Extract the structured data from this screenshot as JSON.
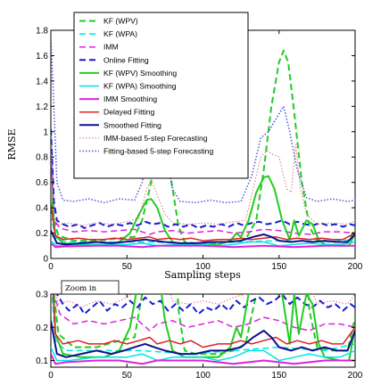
{
  "chart_data": [
    {
      "type": "line",
      "panel": "main",
      "xlabel": "Sampling steps",
      "ylabel": "RMSE",
      "xlim": [
        0,
        200
      ],
      "ylim": [
        0,
        1.8
      ],
      "xticks": [
        0,
        50,
        100,
        150,
        200
      ],
      "yticks": [
        0,
        0.2,
        0.4,
        0.6,
        0.8,
        1,
        1.2,
        1.4,
        1.6,
        1.8
      ],
      "grid": false,
      "legend_position": "top-right"
    },
    {
      "type": "line",
      "panel": "zoom",
      "annotation": "Zoom in",
      "xlim": [
        0,
        200
      ],
      "ylim": [
        0.08,
        0.3
      ],
      "xticks": [
        0,
        50,
        100,
        150,
        200
      ],
      "yticks": [
        0.1,
        0.2,
        0.3
      ],
      "grid": false
    }
  ],
  "series": [
    {
      "name": "KF (WPV)",
      "color": "#22cc22",
      "style": "dashed",
      "width": 2,
      "points": [
        [
          0,
          1.0
        ],
        [
          2,
          0.3
        ],
        [
          5,
          0.18
        ],
        [
          15,
          0.14
        ],
        [
          30,
          0.14
        ],
        [
          45,
          0.16
        ],
        [
          55,
          0.17
        ],
        [
          60,
          0.3
        ],
        [
          65,
          0.55
        ],
        [
          70,
          0.85
        ],
        [
          73,
          0.93
        ],
        [
          76,
          0.85
        ],
        [
          80,
          0.55
        ],
        [
          84,
          0.25
        ],
        [
          88,
          0.13
        ],
        [
          95,
          0.12
        ],
        [
          110,
          0.12
        ],
        [
          120,
          0.13
        ],
        [
          128,
          0.15
        ],
        [
          135,
          0.3
        ],
        [
          140,
          0.7
        ],
        [
          145,
          1.2
        ],
        [
          150,
          1.55
        ],
        [
          153,
          1.64
        ],
        [
          156,
          1.55
        ],
        [
          160,
          1.15
        ],
        [
          165,
          0.6
        ],
        [
          170,
          0.25
        ],
        [
          175,
          0.14
        ],
        [
          185,
          0.13
        ],
        [
          195,
          0.13
        ],
        [
          200,
          0.23
        ]
      ]
    },
    {
      "name": "KF (WPA)",
      "color": "#00e5e5",
      "style": "dashed",
      "width": 1.5,
      "points": [
        [
          0,
          0.35
        ],
        [
          3,
          0.16
        ],
        [
          10,
          0.13
        ],
        [
          30,
          0.13
        ],
        [
          60,
          0.13
        ],
        [
          90,
          0.12
        ],
        [
          120,
          0.13
        ],
        [
          150,
          0.14
        ],
        [
          180,
          0.13
        ],
        [
          200,
          0.15
        ]
      ]
    },
    {
      "name": "IMM",
      "color": "#dd22dd",
      "style": "dashed",
      "width": 1.5,
      "points": [
        [
          0,
          0.9
        ],
        [
          2,
          0.3
        ],
        [
          6,
          0.24
        ],
        [
          15,
          0.21
        ],
        [
          25,
          0.22
        ],
        [
          35,
          0.21
        ],
        [
          45,
          0.22
        ],
        [
          55,
          0.23
        ],
        [
          65,
          0.19
        ],
        [
          70,
          0.21
        ],
        [
          80,
          0.22
        ],
        [
          90,
          0.2
        ],
        [
          100,
          0.21
        ],
        [
          110,
          0.22
        ],
        [
          120,
          0.2
        ],
        [
          130,
          0.21
        ],
        [
          140,
          0.23
        ],
        [
          150,
          0.22
        ],
        [
          160,
          0.2
        ],
        [
          170,
          0.19
        ],
        [
          180,
          0.21
        ],
        [
          190,
          0.21
        ],
        [
          200,
          0.2
        ]
      ]
    },
    {
      "name": "Online Fitting",
      "color": "#1a1ad0",
      "style": "dashed",
      "width": 2,
      "points": [
        [
          0,
          1.02
        ],
        [
          2,
          0.45
        ],
        [
          4,
          0.3
        ],
        [
          8,
          0.27
        ],
        [
          12,
          0.25
        ],
        [
          18,
          0.27
        ],
        [
          22,
          0.24
        ],
        [
          27,
          0.26
        ],
        [
          32,
          0.28
        ],
        [
          37,
          0.25
        ],
        [
          42,
          0.27
        ],
        [
          47,
          0.26
        ],
        [
          52,
          0.28
        ],
        [
          57,
          0.26
        ],
        [
          62,
          0.29
        ],
        [
          67,
          0.27
        ],
        [
          72,
          0.28
        ],
        [
          77,
          0.25
        ],
        [
          82,
          0.27
        ],
        [
          87,
          0.25
        ],
        [
          92,
          0.27
        ],
        [
          97,
          0.24
        ],
        [
          102,
          0.26
        ],
        [
          107,
          0.25
        ],
        [
          112,
          0.27
        ],
        [
          117,
          0.25
        ],
        [
          122,
          0.28
        ],
        [
          127,
          0.26
        ],
        [
          132,
          0.28
        ],
        [
          137,
          0.29
        ],
        [
          142,
          0.27
        ],
        [
          147,
          0.28
        ],
        [
          152,
          0.3
        ],
        [
          157,
          0.27
        ],
        [
          162,
          0.29
        ],
        [
          167,
          0.27
        ],
        [
          172,
          0.26
        ],
        [
          177,
          0.28
        ],
        [
          182,
          0.26
        ],
        [
          187,
          0.27
        ],
        [
          192,
          0.25
        ],
        [
          197,
          0.27
        ],
        [
          200,
          0.26
        ]
      ]
    },
    {
      "name": "KF (WPV) Smoothing",
      "color": "#22cc22",
      "style": "solid",
      "width": 2,
      "points": [
        [
          0,
          0.5
        ],
        [
          3,
          0.18
        ],
        [
          8,
          0.12
        ],
        [
          20,
          0.11
        ],
        [
          35,
          0.11
        ],
        [
          45,
          0.13
        ],
        [
          52,
          0.2
        ],
        [
          58,
          0.35
        ],
        [
          63,
          0.46
        ],
        [
          66,
          0.47
        ],
        [
          70,
          0.4
        ],
        [
          75,
          0.22
        ],
        [
          80,
          0.13
        ],
        [
          88,
          0.11
        ],
        [
          100,
          0.11
        ],
        [
          110,
          0.11
        ],
        [
          118,
          0.14
        ],
        [
          122,
          0.2
        ],
        [
          125,
          0.17
        ],
        [
          130,
          0.3
        ],
        [
          135,
          0.52
        ],
        [
          140,
          0.64
        ],
        [
          143,
          0.65
        ],
        [
          147,
          0.55
        ],
        [
          152,
          0.3
        ],
        [
          157,
          0.15
        ],
        [
          160,
          0.3
        ],
        [
          163,
          0.18
        ],
        [
          168,
          0.3
        ],
        [
          172,
          0.27
        ],
        [
          176,
          0.15
        ],
        [
          180,
          0.11
        ],
        [
          190,
          0.1
        ],
        [
          196,
          0.1
        ],
        [
          200,
          0.2
        ]
      ]
    },
    {
      "name": "KF (WPA) Smoothing",
      "color": "#00e5e5",
      "style": "solid",
      "width": 1.5,
      "points": [
        [
          0,
          0.14
        ],
        [
          4,
          0.1
        ],
        [
          12,
          0.1
        ],
        [
          30,
          0.11
        ],
        [
          50,
          0.11
        ],
        [
          60,
          0.12
        ],
        [
          70,
          0.1
        ],
        [
          80,
          0.11
        ],
        [
          100,
          0.11
        ],
        [
          110,
          0.1
        ],
        [
          120,
          0.11
        ],
        [
          130,
          0.13
        ],
        [
          140,
          0.13
        ],
        [
          150,
          0.1
        ],
        [
          160,
          0.11
        ],
        [
          170,
          0.12
        ],
        [
          180,
          0.11
        ],
        [
          190,
          0.11
        ],
        [
          200,
          0.13
        ]
      ]
    },
    {
      "name": "IMM Smoothing",
      "color": "#dd22dd",
      "style": "solid",
      "width": 2,
      "points": [
        [
          0,
          0.12
        ],
        [
          3,
          0.09
        ],
        [
          10,
          0.095
        ],
        [
          30,
          0.1
        ],
        [
          45,
          0.1
        ],
        [
          60,
          0.09
        ],
        [
          70,
          0.1
        ],
        [
          80,
          0.1
        ],
        [
          100,
          0.1
        ],
        [
          120,
          0.09
        ],
        [
          140,
          0.1
        ],
        [
          160,
          0.09
        ],
        [
          180,
          0.1
        ],
        [
          200,
          0.1
        ]
      ]
    },
    {
      "name": "Delayed Fitting",
      "color": "#dd2222",
      "style": "solid",
      "width": 1.5,
      "points": [
        [
          0,
          0.42
        ],
        [
          3,
          0.18
        ],
        [
          8,
          0.15
        ],
        [
          18,
          0.16
        ],
        [
          25,
          0.15
        ],
        [
          35,
          0.15
        ],
        [
          42,
          0.16
        ],
        [
          50,
          0.15
        ],
        [
          58,
          0.16
        ],
        [
          65,
          0.17
        ],
        [
          70,
          0.15
        ],
        [
          78,
          0.16
        ],
        [
          85,
          0.15
        ],
        [
          92,
          0.16
        ],
        [
          100,
          0.14
        ],
        [
          110,
          0.15
        ],
        [
          118,
          0.15
        ],
        [
          125,
          0.16
        ],
        [
          132,
          0.15
        ],
        [
          140,
          0.16
        ],
        [
          148,
          0.17
        ],
        [
          155,
          0.15
        ],
        [
          162,
          0.16
        ],
        [
          170,
          0.15
        ],
        [
          178,
          0.16
        ],
        [
          185,
          0.15
        ],
        [
          192,
          0.15
        ],
        [
          200,
          0.2
        ]
      ]
    },
    {
      "name": "Smoothed Fitting",
      "color": "#10108c",
      "style": "solid",
      "width": 2,
      "points": [
        [
          0,
          0.22
        ],
        [
          4,
          0.12
        ],
        [
          10,
          0.11
        ],
        [
          20,
          0.12
        ],
        [
          30,
          0.13
        ],
        [
          40,
          0.12
        ],
        [
          48,
          0.13
        ],
        [
          55,
          0.14
        ],
        [
          62,
          0.15
        ],
        [
          68,
          0.14
        ],
        [
          75,
          0.13
        ],
        [
          85,
          0.12
        ],
        [
          95,
          0.12
        ],
        [
          105,
          0.13
        ],
        [
          115,
          0.13
        ],
        [
          125,
          0.14
        ],
        [
          133,
          0.17
        ],
        [
          140,
          0.19
        ],
        [
          145,
          0.17
        ],
        [
          150,
          0.14
        ],
        [
          158,
          0.13
        ],
        [
          165,
          0.14
        ],
        [
          172,
          0.13
        ],
        [
          180,
          0.14
        ],
        [
          188,
          0.13
        ],
        [
          195,
          0.13
        ],
        [
          200,
          0.19
        ]
      ]
    },
    {
      "name": "IMM-based 5-step Forecasting",
      "color": "#d97777",
      "style": "dotted",
      "width": 1,
      "points": [
        [
          0,
          0.9
        ],
        [
          2,
          0.32
        ],
        [
          5,
          0.27
        ],
        [
          12,
          0.28
        ],
        [
          20,
          0.26
        ],
        [
          30,
          0.28
        ],
        [
          40,
          0.27
        ],
        [
          50,
          0.29
        ],
        [
          58,
          0.32
        ],
        [
          63,
          0.55
        ],
        [
          66,
          0.62
        ],
        [
          70,
          0.5
        ],
        [
          75,
          0.35
        ],
        [
          80,
          0.28
        ],
        [
          90,
          0.27
        ],
        [
          100,
          0.28
        ],
        [
          110,
          0.27
        ],
        [
          120,
          0.29
        ],
        [
          128,
          0.3
        ],
        [
          133,
          0.55
        ],
        [
          138,
          0.8
        ],
        [
          142,
          0.85
        ],
        [
          146,
          0.82
        ],
        [
          150,
          0.8
        ],
        [
          155,
          0.55
        ],
        [
          158,
          0.52
        ],
        [
          161,
          0.9
        ],
        [
          164,
          0.55
        ],
        [
          168,
          0.35
        ],
        [
          175,
          0.27
        ],
        [
          185,
          0.28
        ],
        [
          195,
          0.27
        ],
        [
          200,
          0.3
        ]
      ]
    },
    {
      "name": "Fitting-based 5-step Forecasting",
      "color": "#5555dd",
      "style": "dotted",
      "width": 1.5,
      "points": [
        [
          0,
          1.75
        ],
        [
          2,
          1.2
        ],
        [
          4,
          0.6
        ],
        [
          8,
          0.46
        ],
        [
          15,
          0.45
        ],
        [
          25,
          0.47
        ],
        [
          35,
          0.44
        ],
        [
          45,
          0.47
        ],
        [
          55,
          0.46
        ],
        [
          60,
          0.6
        ],
        [
          65,
          0.92
        ],
        [
          70,
          1.0
        ],
        [
          75,
          0.85
        ],
        [
          80,
          0.55
        ],
        [
          85,
          0.45
        ],
        [
          95,
          0.44
        ],
        [
          105,
          0.46
        ],
        [
          115,
          0.44
        ],
        [
          125,
          0.45
        ],
        [
          132,
          0.65
        ],
        [
          138,
          0.95
        ],
        [
          143,
          1.0
        ],
        [
          148,
          1.1
        ],
        [
          153,
          1.2
        ],
        [
          157,
          1.0
        ],
        [
          162,
          0.7
        ],
        [
          168,
          0.48
        ],
        [
          175,
          0.45
        ],
        [
          185,
          0.47
        ],
        [
          195,
          0.45
        ],
        [
          200,
          0.46
        ]
      ]
    }
  ]
}
